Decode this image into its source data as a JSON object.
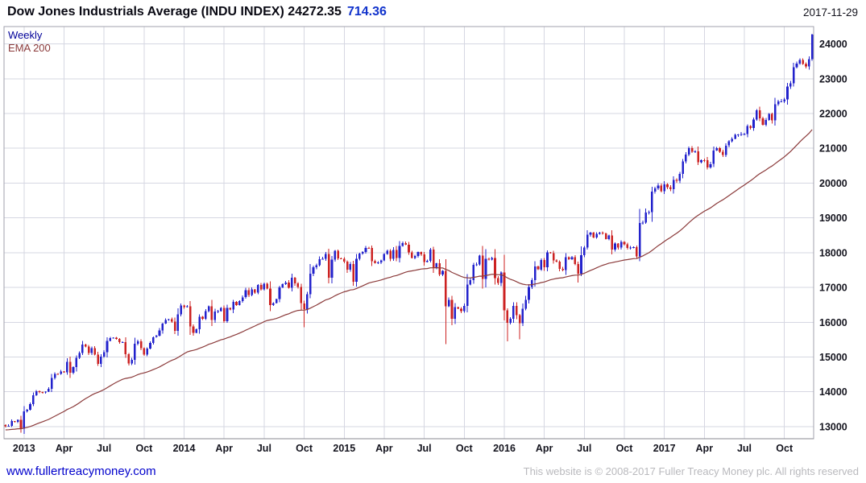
{
  "header": {
    "title": "Dow Jones Industrials Average (INDU INDEX) 24272.35",
    "change": "714.36",
    "date": "2017-11-29"
  },
  "legend": {
    "timeframe": "Weekly",
    "overlay": "EMA 200"
  },
  "footer": {
    "site_link": "www.fullertreacymoney.com",
    "copyright": "This website is © 2008-2017 Fuller Treacy Money plc. All rights reserved"
  },
  "chart_data": {
    "type": "candlestick",
    "title": "Dow Jones Industrials Average (INDU INDEX)",
    "last_price": 24272.35,
    "change": 714.36,
    "date": "2017-11-29",
    "timeframe": "Weekly",
    "overlay": "EMA 200",
    "xlabel": "",
    "ylabel": "",
    "grid": true,
    "legend_position": "top-left",
    "ylim": [
      12650,
      24500
    ],
    "y_ticks": [
      13000,
      14000,
      15000,
      16000,
      17000,
      18000,
      19000,
      20000,
      21000,
      22000,
      23000,
      24000
    ],
    "x_ticks": [
      {
        "label": "2013",
        "i": 6
      },
      {
        "label": "Apr",
        "i": 19
      },
      {
        "label": "Jul",
        "i": 32
      },
      {
        "label": "Oct",
        "i": 45
      },
      {
        "label": "2014",
        "i": 58
      },
      {
        "label": "Apr",
        "i": 71
      },
      {
        "label": "Jul",
        "i": 84
      },
      {
        "label": "Oct",
        "i": 97
      },
      {
        "label": "2015",
        "i": 110
      },
      {
        "label": "Apr",
        "i": 123
      },
      {
        "label": "Jul",
        "i": 136
      },
      {
        "label": "Oct",
        "i": 149
      },
      {
        "label": "2016",
        "i": 162
      },
      {
        "label": "Apr",
        "i": 175
      },
      {
        "label": "Jul",
        "i": 188
      },
      {
        "label": "Oct",
        "i": 201
      },
      {
        "label": "2017",
        "i": 214
      },
      {
        "label": "Apr",
        "i": 227
      },
      {
        "label": "Jul",
        "i": 240
      },
      {
        "label": "Oct",
        "i": 253
      }
    ],
    "colors": {
      "up": "#2222cc",
      "down": "#cc2222",
      "ema": "#8b3a3a",
      "grid": "#d6d7e2",
      "axis": "#a0a0ac",
      "label": "#14141e"
    },
    "first_open": 13040,
    "open_rule": "previous_close",
    "ema_period": 52,
    "ema_seed": 12900,
    "low_overrides": {
      "97": 15855,
      "143": 15370,
      "163": 15450,
      "167": 15503,
      "186": 17140,
      "262": 23520
    },
    "high_overrides": {
      "262": 24290
    },
    "closes": [
      13009,
      13026,
      13155,
      13135,
      13191,
      12938,
      13435,
      13488,
      13650,
      13896,
      14010,
      13993,
      13982,
      14001,
      14090,
      14397,
      14514,
      14512,
      14579,
      14565,
      14865,
      14548,
      14713,
      14974,
      15118,
      15354,
      15303,
      15116,
      15248,
      15070,
      14799,
      15010,
      15136,
      15464,
      15544,
      15559,
      15521,
      15425,
      15426,
      15081,
      14810,
      14923,
      15376,
      15451,
      15258,
      15073,
      15237,
      15400,
      15571,
      15616,
      15762,
      15962,
      16065,
      16086,
      16020,
      15755,
      16221,
      16478,
      16437,
      16459,
      15879,
      15699,
      15794,
      16154,
      16103,
      16322,
      16453,
      16066,
      16303,
      16323,
      16413,
      16027,
      16409,
      16361,
      16583,
      16491,
      16606,
      16717,
      16924,
      16776,
      16947,
      16852,
      17068,
      16944,
      17100,
      16961,
      16493,
      16554,
      16662,
      17001,
      17098,
      17137,
      16987,
      17280,
      17113,
      17010,
      16544,
      16380,
      16805,
      17390,
      17574,
      17635,
      17810,
      17828,
      17959,
      17281,
      17805,
      18054,
      17833,
      17823,
      17737,
      17512,
      17673,
      17165,
      17824,
      17972,
      18019,
      18140,
      18133,
      17749,
      17712,
      17713,
      17776,
      17958,
      18058,
      17826,
      18080,
      17841,
      18191,
      18273,
      18232,
      18011,
      17849,
      17899,
      18014,
      17947,
      17730,
      17760,
      18086,
      17569,
      17690,
      17373,
      17477,
      16460,
      16643,
      16102,
      16433,
      16385,
      16315,
      16472,
      17084,
      17215,
      17647,
      17664,
      17910,
      17245,
      17824,
      17798,
      17848,
      17265,
      17128,
      17425,
      16346,
      15988,
      16094,
      16466,
      16205,
      15974,
      16392,
      16640,
      17007,
      17213,
      17602,
      17516,
      17793,
      17577,
      18004,
      17990,
      17774,
      17741,
      17535,
      17501,
      17873,
      17807,
      17865,
      17675,
      17400,
      17930,
      18147,
      18517,
      18571,
      18432,
      18543,
      18576,
      18553,
      18395,
      18492,
      18085,
      18261,
      18143,
      18308,
      18240,
      18138,
      18146,
      18161,
      17888,
      18848,
      18868,
      19152,
      19170,
      19757,
      19843,
      19934,
      19763,
      19964,
      19886,
      19827,
      20094,
      20071,
      20269,
      20624,
      20822,
      21006,
      20903,
      20915,
      20597,
      20663,
      20656,
      20453,
      20548,
      20940,
      21007,
      20896,
      20805,
      21080,
      21206,
      21272,
      21384,
      21395,
      21410,
      21414,
      21638,
      21580,
      21830,
      22093,
      21858,
      21675,
      21814,
      21988,
      21798,
      22268,
      22349,
      22350,
      22405,
      22774,
      22872,
      23329,
      23434,
      23539,
      23422,
      23358,
      23558,
      24272.35
    ]
  }
}
